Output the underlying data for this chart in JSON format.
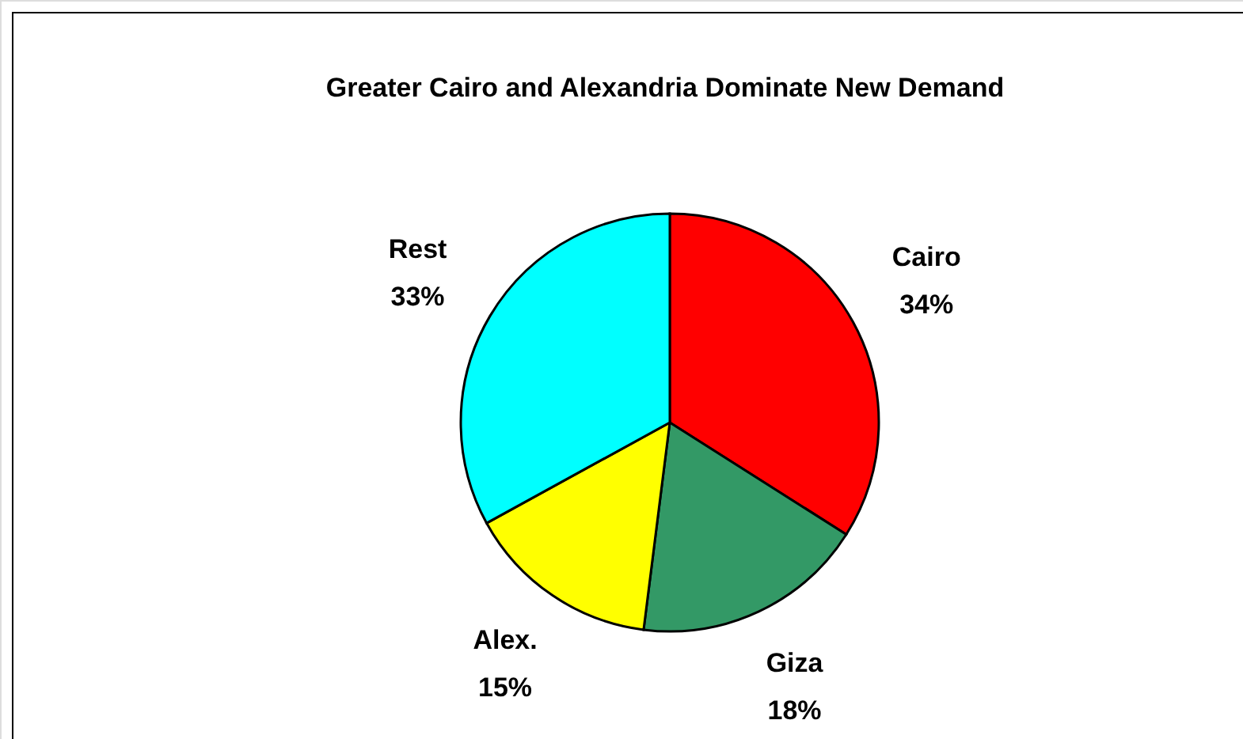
{
  "chart_data": {
    "type": "pie",
    "title": "Greater Cairo and Alexandria Dominate New Demand",
    "categories": [
      "Cairo",
      "Giza",
      "Alex.",
      "Rest"
    ],
    "values": [
      34,
      18,
      15,
      33
    ],
    "colors": [
      "#ff0000",
      "#339966",
      "#ffff00",
      "#00ffff"
    ],
    "value_labels": [
      "34%",
      "18%",
      "15%",
      "33%"
    ]
  }
}
